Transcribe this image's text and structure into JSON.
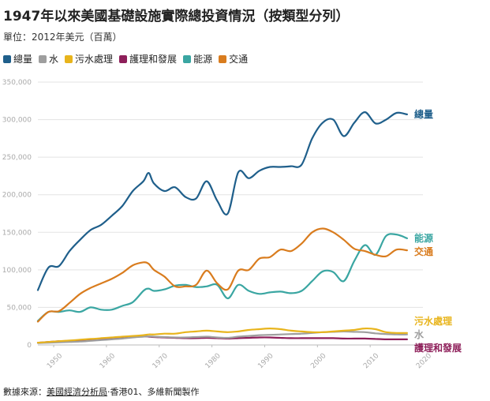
{
  "title": "1947年以來美國基礎設施實際總投資情況（按類型分列）",
  "subtitle": "單位：2012年美元（百萬）",
  "footer": {
    "prefix": "數據來源：",
    "source_link": "美國經濟分析局",
    "suffix": "‧香港01、多維新聞製作"
  },
  "colors": {
    "總量": "#1f5f8b",
    "水": "#9e9e9e",
    "污水處理": "#e8b41c",
    "護理和發展": "#8e1f5a",
    "能源": "#3aa6a2",
    "交通": "#d97c1e"
  },
  "chart_data": {
    "type": "line",
    "title": "1947年以來美國基礎設施實際總投資情況（按類型分列）",
    "ylabel": "單位：2012年美元（百萬）",
    "xlabel": "",
    "xlim": [
      1947,
      2020
    ],
    "ylim": [
      0,
      350000
    ],
    "x_ticks": [
      1950,
      1960,
      1970,
      1980,
      1990,
      2000,
      2010,
      2020
    ],
    "y_ticks": [
      0,
      50000,
      100000,
      150000,
      200000,
      250000,
      300000,
      350000
    ],
    "y_tick_labels": [
      "0",
      "50,000",
      "100,000",
      "150,000",
      "200,000",
      "250,000",
      "300,000",
      "350,000"
    ],
    "grid": true,
    "legend_position": "top-left",
    "x": [
      1947,
      1949,
      1951,
      1953,
      1955,
      1957,
      1959,
      1961,
      1963,
      1965,
      1967,
      1968,
      1969,
      1971,
      1973,
      1975,
      1977,
      1979,
      1981,
      1983,
      1985,
      1987,
      1989,
      1991,
      1993,
      1995,
      1997,
      1999,
      2001,
      2003,
      2005,
      2007,
      2009,
      2011,
      2013,
      2015,
      2017
    ],
    "series": [
      {
        "name": "總量",
        "values": [
          73000,
          103000,
          105000,
          125000,
          140000,
          153000,
          160000,
          172000,
          185000,
          205000,
          218000,
          229000,
          215000,
          205000,
          210000,
          197000,
          195000,
          218000,
          192000,
          175000,
          230000,
          222000,
          232000,
          237000,
          237000,
          238000,
          240000,
          275000,
          296000,
          300000,
          278000,
          296000,
          310000,
          295000,
          300000,
          309000,
          307000
        ]
      },
      {
        "name": "能源",
        "values": [
          32000,
          44000,
          44000,
          46000,
          44000,
          50000,
          47000,
          47000,
          52000,
          57000,
          72000,
          75000,
          72000,
          74000,
          79000,
          80000,
          77000,
          78000,
          80000,
          62000,
          80000,
          72000,
          68000,
          70000,
          71000,
          69000,
          72000,
          85000,
          98000,
          97000,
          85000,
          112000,
          133000,
          120000,
          145000,
          147000,
          142000
        ]
      },
      {
        "name": "交通",
        "values": [
          31000,
          44000,
          45000,
          56000,
          68000,
          76000,
          82000,
          88000,
          96000,
          106000,
          110000,
          108000,
          100000,
          91000,
          78000,
          78000,
          80000,
          99000,
          82000,
          74000,
          99000,
          100000,
          115000,
          117000,
          127000,
          125000,
          135000,
          150000,
          155000,
          150000,
          140000,
          128000,
          125000,
          120000,
          118000,
          127000,
          126000
        ]
      },
      {
        "name": "污水處理",
        "values": [
          3000,
          4000,
          5000,
          6000,
          7000,
          8000,
          9000,
          10000,
          11000,
          12000,
          13000,
          14000,
          14000,
          15000,
          15000,
          17000,
          18000,
          19000,
          18000,
          17000,
          18000,
          20000,
          21000,
          22000,
          21000,
          19000,
          18000,
          17000,
          17000,
          18000,
          19000,
          20000,
          22000,
          21000,
          17000,
          16000,
          16000
        ]
      },
      {
        "name": "水",
        "values": [
          2500,
          3000,
          3500,
          4000,
          4500,
          5500,
          6500,
          7500,
          8500,
          10000,
          11000,
          11500,
          11000,
          10500,
          10000,
          10000,
          10500,
          11000,
          10000,
          9500,
          11000,
          12000,
          13000,
          13500,
          14000,
          14500,
          15000,
          16000,
          17000,
          17500,
          18000,
          17500,
          17000,
          15500,
          14500,
          14000,
          14000
        ]
      },
      {
        "name": "護理和發展",
        "values": [
          3000,
          4000,
          5000,
          5500,
          6000,
          7000,
          8000,
          9000,
          10000,
          11000,
          11500,
          11000,
          10500,
          10000,
          9500,
          9000,
          9000,
          9500,
          9000,
          8500,
          9000,
          9500,
          10000,
          10000,
          9500,
          9000,
          9000,
          9000,
          9000,
          9000,
          8500,
          8500,
          8500,
          8000,
          7500,
          7500,
          7500
        ]
      }
    ],
    "end_labels": [
      {
        "series": "總量",
        "text": "總量"
      },
      {
        "series": "能源",
        "text": "能源"
      },
      {
        "series": "交通",
        "text": "交通"
      },
      {
        "series": "污水處理",
        "text": "污水處理"
      },
      {
        "series": "水",
        "text": "水"
      },
      {
        "series": "護理和發展",
        "text": "護理和發展"
      }
    ]
  },
  "legend_order": [
    "總量",
    "水",
    "污水處理",
    "護理和發展",
    "能源",
    "交通"
  ]
}
